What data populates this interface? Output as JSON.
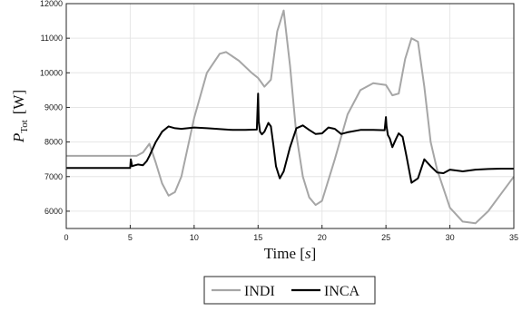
{
  "chart_data": {
    "type": "line",
    "xlabel": "Time [s]",
    "ylabel": "P_Tot [W]",
    "ylabel_main": "P",
    "ylabel_sub": "Tot",
    "ylabel_unit": "[W]",
    "xlim": [
      0,
      35
    ],
    "ylim": [
      5500,
      12000
    ],
    "x_ticks": [
      0,
      5,
      10,
      15,
      20,
      25,
      30,
      35
    ],
    "y_ticks": [
      6000,
      7000,
      8000,
      9000,
      10000,
      11000,
      12000
    ],
    "grid": true,
    "legend_position": "bottom-center",
    "series": [
      {
        "name": "INDI",
        "color": "#a6a6a6",
        "x": [
          0,
          5.5,
          6.0,
          6.5,
          7.0,
          7.5,
          8.0,
          8.5,
          9.0,
          10.0,
          11.0,
          12.0,
          12.5,
          13.5,
          14.5,
          15.0,
          15.5,
          16.0,
          16.5,
          17.0,
          17.5,
          18.0,
          18.5,
          19.0,
          19.5,
          20.0,
          21.0,
          22.0,
          23.0,
          24.0,
          25.0,
          25.5,
          26.0,
          26.5,
          27.0,
          27.5,
          28.0,
          28.5,
          29.0,
          30.0,
          31.0,
          32.0,
          33.0,
          34.0,
          35.0
        ],
        "y": [
          7600,
          7600,
          7700,
          7950,
          7400,
          6800,
          6450,
          6550,
          7000,
          8700,
          10000,
          10550,
          10600,
          10350,
          10000,
          9850,
          9600,
          9800,
          11200,
          11800,
          10200,
          8200,
          7000,
          6400,
          6180,
          6300,
          7500,
          8800,
          9500,
          9700,
          9650,
          9350,
          9400,
          10400,
          11000,
          10900,
          9600,
          8000,
          7200,
          6100,
          5700,
          5650,
          6000,
          6500,
          7000
        ]
      },
      {
        "name": "INCA",
        "color": "#000000",
        "x": [
          0,
          5.0,
          5.05,
          5.15,
          5.3,
          5.6,
          6.0,
          6.3,
          6.5,
          7.0,
          7.5,
          8.0,
          8.5,
          9.0,
          10.0,
          11.0,
          13.0,
          14.0,
          14.9,
          15.0,
          15.05,
          15.15,
          15.3,
          15.5,
          15.8,
          16.0,
          16.2,
          16.4,
          16.7,
          17.0,
          17.5,
          18.0,
          18.5,
          19.0,
          19.5,
          20.0,
          20.5,
          21.0,
          21.5,
          22.0,
          23.0,
          24.0,
          24.9,
          25.0,
          25.05,
          25.15,
          25.3,
          25.5,
          25.8,
          26.0,
          26.3,
          26.6,
          27.0,
          27.5,
          28.0,
          28.5,
          29.0,
          29.5,
          30.0,
          31.0,
          32.0,
          33.0,
          34.0,
          35.0
        ],
        "y": [
          7250,
          7250,
          7500,
          7300,
          7320,
          7350,
          7330,
          7450,
          7600,
          8000,
          8300,
          8450,
          8400,
          8380,
          8420,
          8400,
          8350,
          8350,
          8360,
          9400,
          8600,
          8300,
          8220,
          8300,
          8550,
          8450,
          7900,
          7300,
          6950,
          7150,
          7850,
          8400,
          8480,
          8350,
          8230,
          8250,
          8420,
          8380,
          8230,
          8280,
          8350,
          8350,
          8340,
          8720,
          8450,
          8200,
          8100,
          7850,
          8100,
          8250,
          8150,
          7600,
          6820,
          6950,
          7500,
          7300,
          7120,
          7100,
          7200,
          7150,
          7200,
          7220,
          7230,
          7230
        ]
      }
    ]
  }
}
